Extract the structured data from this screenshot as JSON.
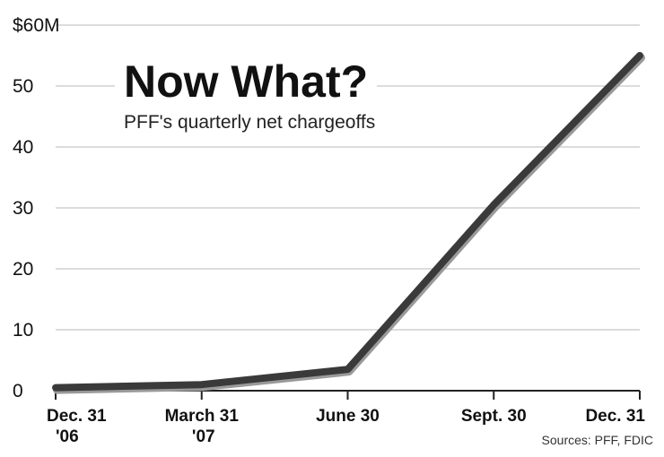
{
  "chart_data": {
    "type": "line",
    "title": "Now What?",
    "subtitle": "PFF's quarterly net chargeoffs",
    "source": "Sources: PFF, FDIC",
    "categories": [
      [
        "Dec. 31",
        "'06"
      ],
      [
        "March 31",
        "'07"
      ],
      [
        "June 30"
      ],
      [
        "Sept. 30"
      ],
      [
        "Dec. 31"
      ]
    ],
    "series": [
      {
        "values": [
          0.5,
          1.0,
          3.5,
          30.5,
          55.0
        ]
      }
    ],
    "ylim": [
      0,
      60
    ],
    "yticks": [
      0,
      10,
      20,
      30,
      40,
      50,
      60
    ],
    "ytick_labels": [
      "0",
      "10",
      "20",
      "30",
      "40",
      "50",
      "$60M"
    ],
    "grid": true,
    "colors": {
      "line": "#3a3a3a",
      "shadow": "#9a9a9a",
      "grid": "#c8c8c8",
      "axis": "#222222"
    }
  }
}
